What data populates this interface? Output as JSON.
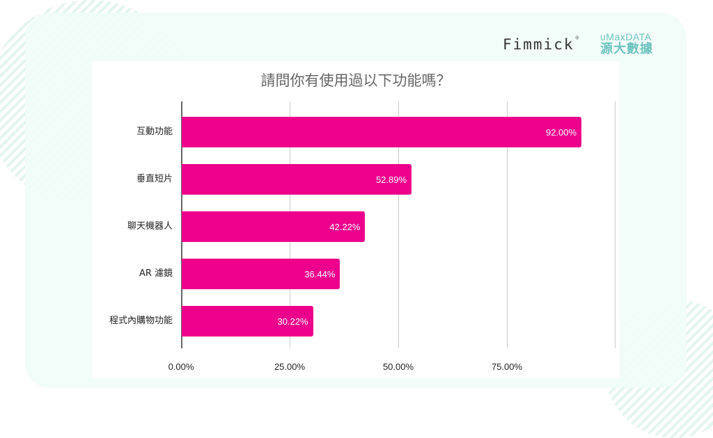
{
  "branding": {
    "fimmick": "Fimmick",
    "fimmick_mark": "®",
    "umax_en": "uMaxDATA",
    "umax_zh": "源大數據"
  },
  "colors": {
    "bar": "#ec008c",
    "background_mint": "#f1fcf8",
    "stripe": "#e4f4ef",
    "logo_teal": "#6cc3bf"
  },
  "chart_data": {
    "type": "bar",
    "orientation": "horizontal",
    "title": "請問你有使用過以下功能嗎？",
    "categories": [
      "互動功能",
      "垂直短片",
      "聊天機器人",
      "AR 濾鏡",
      "程式內購物功能"
    ],
    "values": [
      92.0,
      52.89,
      42.22,
      36.44,
      30.22
    ],
    "value_labels": [
      "92.00%",
      "52.89%",
      "42.22%",
      "36.44%",
      "30.22%"
    ],
    "xlabel": "",
    "ylabel": "",
    "xlim": [
      0,
      100
    ],
    "x_ticks": [
      "0.00%",
      "25.00%",
      "50.00%",
      "75.00%"
    ],
    "grid": true,
    "legend": "none",
    "bar_color": "#ec008c"
  }
}
